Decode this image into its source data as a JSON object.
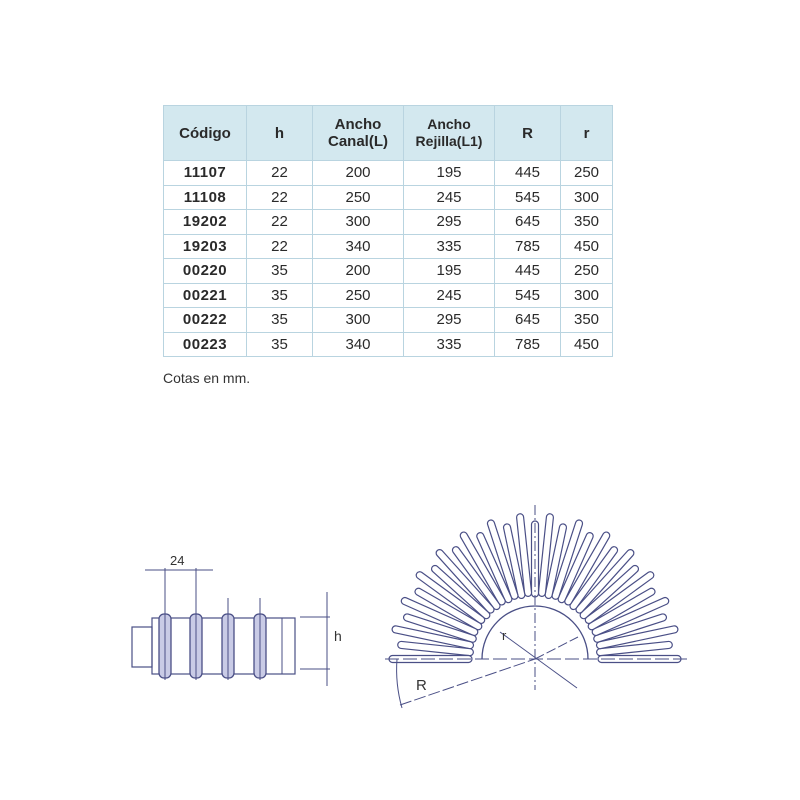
{
  "table": {
    "headers": [
      {
        "line1": "Código",
        "line2": ""
      },
      {
        "line1": "h",
        "line2": ""
      },
      {
        "line1": "Ancho",
        "line2": "Canal(L)"
      },
      {
        "line1": "Ancho",
        "line2": "Rejilla(L1)"
      },
      {
        "line1": "R",
        "line2": ""
      },
      {
        "line1": "r",
        "line2": ""
      }
    ],
    "rows": [
      [
        "11107",
        "22",
        "200",
        "195",
        "445",
        "250"
      ],
      [
        "11108",
        "22",
        "250",
        "245",
        "545",
        "300"
      ],
      [
        "19202",
        "22",
        "300",
        "295",
        "645",
        "350"
      ],
      [
        "19203",
        "22",
        "340",
        "335",
        "785",
        "450"
      ],
      [
        "00220",
        "35",
        "200",
        "195",
        "445",
        "250"
      ],
      [
        "00221",
        "35",
        "250",
        "245",
        "545",
        "300"
      ],
      [
        "00222",
        "35",
        "300",
        "295",
        "645",
        "350"
      ],
      [
        "00223",
        "35",
        "340",
        "335",
        "785",
        "450"
      ]
    ],
    "header_bg": "#d3e8ef",
    "border_color": "#b9d4e0"
  },
  "note": "Cotas en mm.",
  "drawings": {
    "side_view": {
      "pitch_label": "24",
      "height_label": "h"
    },
    "top_view": {
      "outer_radius_label": "R",
      "inner_radius_label": "r"
    },
    "line_color": "#4a4f86"
  }
}
